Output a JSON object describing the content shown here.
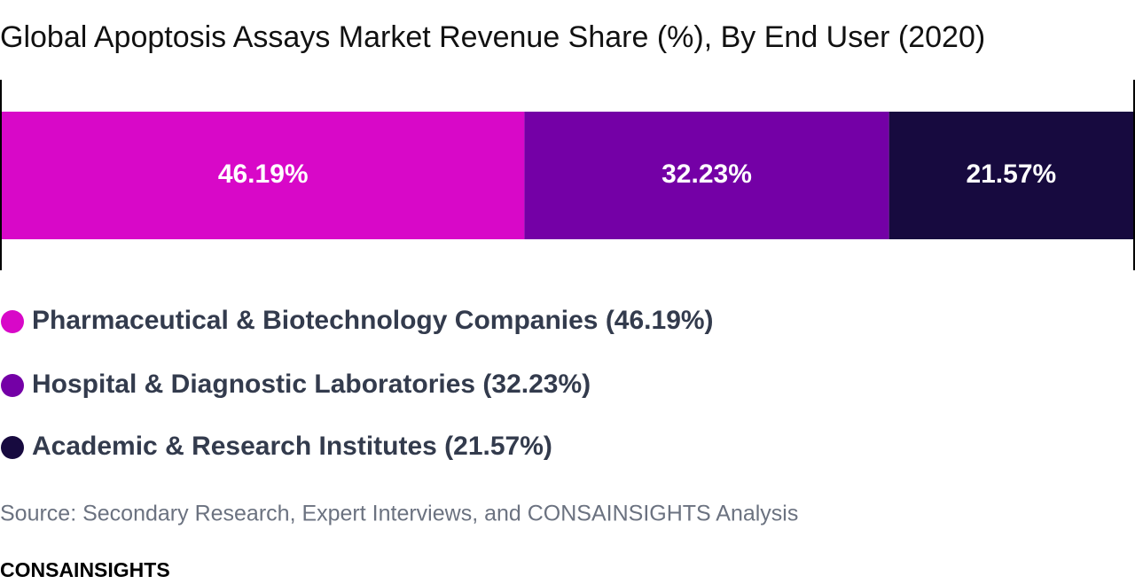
{
  "chart_data": {
    "type": "stacked_bar",
    "orientation": "horizontal",
    "title": "Global Apoptosis Assays Market Revenue Share (%), By End User (2020)",
    "xlim": [
      0,
      100
    ],
    "series": [
      {
        "name": "Pharmaceutical & Biotechnology Companies (46.19%)",
        "color": "#d808c8",
        "values": [
          46.19
        ],
        "value_labels": [
          "46.19%"
        ]
      },
      {
        "name": "Hospital & Diagnostic Laboratories (32.23%)",
        "color": "#7400a6",
        "values": [
          32.23
        ],
        "value_labels": [
          "32.23%"
        ]
      },
      {
        "name": "Academic & Research Institutes (21.57%)",
        "color": "#170a3f",
        "values": [
          21.57
        ],
        "value_labels": [
          "21.57%"
        ]
      }
    ]
  },
  "footer": {
    "source": "Source: Secondary Research, Expert Interviews, and CONSAINSIGHTS Analysis",
    "brand": "CONSAINSIGHTS"
  }
}
